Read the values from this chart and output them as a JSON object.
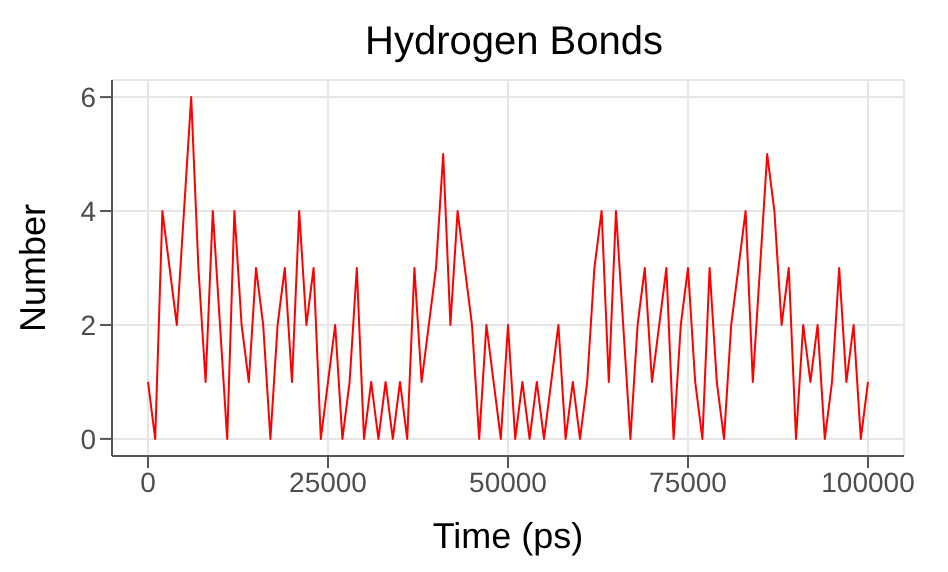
{
  "chart_data": {
    "type": "line",
    "title": "Hydrogen Bonds",
    "xlabel": "Time (ps)",
    "ylabel": "Number",
    "x": [
      0,
      1000,
      2000,
      3000,
      4000,
      5000,
      6000,
      7000,
      8000,
      9000,
      10000,
      11000,
      12000,
      13000,
      14000,
      15000,
      16000,
      17000,
      18000,
      19000,
      20000,
      21000,
      22000,
      23000,
      24000,
      25000,
      26000,
      27000,
      28000,
      29000,
      30000,
      31000,
      32000,
      33000,
      34000,
      35000,
      36000,
      37000,
      38000,
      39000,
      40000,
      41000,
      42000,
      43000,
      44000,
      45000,
      46000,
      47000,
      48000,
      49000,
      50000,
      51000,
      52000,
      53000,
      54000,
      55000,
      56000,
      57000,
      58000,
      59000,
      60000,
      61000,
      62000,
      63000,
      64000,
      65000,
      66000,
      67000,
      68000,
      69000,
      70000,
      71000,
      72000,
      73000,
      74000,
      75000,
      76000,
      77000,
      78000,
      79000,
      80000,
      81000,
      82000,
      83000,
      84000,
      85000,
      86000,
      87000,
      88000,
      89000,
      90000,
      91000,
      92000,
      93000,
      94000,
      95000,
      96000,
      97000,
      98000,
      99000,
      100000
    ],
    "series": [
      {
        "color": "#ff0000",
        "values": [
          1,
          0,
          4,
          3,
          2,
          4,
          6,
          3,
          1,
          4,
          2,
          0,
          4,
          2,
          1,
          3,
          2,
          0,
          2,
          3,
          1,
          4,
          2,
          3,
          0,
          1,
          2,
          0,
          1,
          3,
          0,
          1,
          0,
          1,
          0,
          1,
          0,
          3,
          1,
          2,
          3,
          5,
          2,
          4,
          3,
          2,
          0,
          2,
          1,
          0,
          2,
          0,
          1,
          0,
          1,
          0,
          1,
          2,
          0,
          1,
          0,
          1,
          3,
          4,
          1,
          4,
          2,
          0,
          2,
          3,
          1,
          2,
          3,
          0,
          2,
          3,
          1,
          0,
          3,
          1,
          0,
          2,
          3,
          4,
          1,
          3,
          5,
          4,
          2,
          3,
          0,
          2,
          1,
          2,
          0,
          1,
          3,
          1,
          2,
          0,
          1
        ]
      }
    ],
    "xlim": [
      -5000,
      105000
    ],
    "xticks": [
      0,
      25000,
      50000,
      75000,
      100000
    ],
    "ylim": [
      -0.3,
      6.3
    ],
    "yticks": [
      0,
      2,
      4,
      6
    ],
    "grid": true,
    "line_style": "solid",
    "marker": "none"
  }
}
